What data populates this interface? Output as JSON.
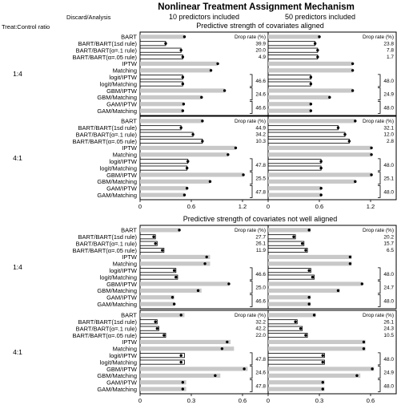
{
  "chart_data": {
    "type": "bar",
    "title": "Nonlinear Treatment Assignment Mechanism",
    "row_header": "Treat:Control ratio",
    "method_header": "Discard/Analysis",
    "column_headers": [
      "10 predictors included",
      "50 predictors included"
    ],
    "drop_rate_label": "Drop rate (%)",
    "methods": [
      "BART",
      "BART/BART(1sd rule)",
      "BART/BART(α=.1 rule)",
      "BART/BART(α=.05 rule)",
      "IPTW",
      "Matching",
      "logit/IPTW",
      "logit/Matching",
      "GBM/IPTW",
      "GBM/Matching",
      "GAM/IPTW",
      "GAM/Matching"
    ],
    "bar_fill": [
      "gray",
      "white",
      "white",
      "white",
      "gray",
      "gray",
      "white",
      "white",
      "gray",
      "gray",
      "gray",
      "gray"
    ],
    "colors": {
      "gray_bar": "#c8c8c8",
      "white_bar": "#ffffff",
      "outline": "#000000"
    },
    "sections": [
      {
        "subtitle": "Predictive strength of covariates aligned",
        "xlim": [
          0,
          1.5
        ],
        "xticks": [
          "0",
          "0.6",
          "1.2"
        ],
        "xtick_values": [
          0,
          0.6,
          1.2
        ],
        "panels": [
          {
            "ratio": "1:4",
            "column": 0,
            "bias": [
              0.52,
              0.3,
              0.48,
              0.5,
              0.91,
              0.83,
              0.5,
              0.5,
              0.99,
              0.72,
              0.51,
              0.5
            ],
            "point": [
              0.52,
              0.3,
              0.48,
              0.5,
              0.91,
              0.83,
              0.5,
              0.5,
              0.99,
              0.72,
              0.51,
              0.5
            ],
            "drop_rates": {
              "BART/BART(1sd rule)": "39.9",
              "BART/BART(α=.1 rule)": "20.0",
              "BART/BART(α=.05 rule)": "4.9",
              "logit": "46.6",
              "GBM": "24.6",
              "GAM": "46.6"
            }
          },
          {
            "ratio": "1:4",
            "column": 1,
            "bias": [
              0.6,
              0.55,
              0.58,
              0.58,
              0.99,
              0.99,
              0.5,
              0.5,
              0.99,
              0.72,
              0.5,
              0.5
            ],
            "point": [
              0.6,
              0.55,
              0.58,
              0.58,
              0.99,
              0.99,
              0.5,
              0.5,
              0.99,
              0.72,
              0.5,
              0.5
            ],
            "drop_rates": {
              "BART/BART(1sd rule)": "23.8",
              "BART/BART(α=.1 rule)": "7.8",
              "BART/BART(α=.05 rule)": "1.7",
              "logit": "48.0",
              "GBM": "24.9",
              "GAM": "48.0"
            }
          },
          {
            "ratio": "4:1",
            "column": 0,
            "bias": [
              0.73,
              0.48,
              0.62,
              0.73,
              1.12,
              1.03,
              0.56,
              0.55,
              1.21,
              0.82,
              0.55,
              0.52
            ],
            "point": [
              0.73,
              0.48,
              0.62,
              0.73,
              1.12,
              1.03,
              0.56,
              0.55,
              1.21,
              0.82,
              0.55,
              0.52
            ],
            "drop_rates": {
              "BART/BART(1sd rule)": "44.9",
              "BART/BART(α=.1 rule)": "34.2",
              "BART/BART(α=.05 rule)": "10.3",
              "logit": "47.8",
              "GBM": "25.5",
              "GAM": "47.8"
            }
          },
          {
            "ratio": "4:1",
            "column": 1,
            "bias": [
              1.02,
              0.82,
              0.9,
              0.95,
              1.21,
              1.21,
              0.62,
              0.62,
              1.21,
              1.02,
              0.62,
              0.62
            ],
            "point": [
              1.02,
              0.82,
              0.9,
              0.95,
              1.21,
              1.21,
              0.62,
              0.62,
              1.21,
              1.02,
              0.62,
              0.62
            ],
            "drop_rates": {
              "BART/BART(1sd rule)": "32.1",
              "BART/BART(α=.1 rule)": "12.0",
              "BART/BART(α=.05 rule)": "2.8",
              "logit": "48.0",
              "GBM": "25.1",
              "GAM": "48.0"
            }
          }
        ]
      },
      {
        "subtitle": "Predictive strength of covariates not well aligned",
        "xlim": [
          0,
          0.75
        ],
        "xticks": [
          "0",
          "0.3",
          "0.6"
        ],
        "xtick_values": [
          0,
          0.3,
          0.6
        ],
        "panels": [
          {
            "ratio": "1:4",
            "column": 0,
            "bias": [
              0.23,
              0.09,
              0.1,
              0.14,
              0.41,
              0.41,
              0.21,
              0.22,
              0.52,
              0.36,
              0.2,
              0.2
            ],
            "point": [
              0.23,
              0.08,
              0.09,
              0.13,
              0.39,
              0.38,
              0.2,
              0.21,
              0.52,
              0.34,
              0.19,
              0.2
            ],
            "drop_rates": {
              "BART/BART(1sd rule)": "27.7",
              "BART/BART(α=.1 rule)": "26.1",
              "BART/BART(α=.05 rule)": "11.9",
              "logit": "46.6",
              "GBM": "25.0",
              "GAM": "46.6"
            }
          },
          {
            "ratio": "1:4",
            "column": 1,
            "bias": [
              0.25,
              0.16,
              0.21,
              0.23,
              0.49,
              0.49,
              0.25,
              0.27,
              0.55,
              0.42,
              0.25,
              0.25
            ],
            "point": [
              0.24,
              0.15,
              0.2,
              0.22,
              0.48,
              0.48,
              0.24,
              0.26,
              0.55,
              0.41,
              0.24,
              0.24
            ],
            "drop_rates": {
              "BART/BART(1sd rule)": "20.2",
              "BART/BART(α=.1 rule)": "15.7",
              "BART/BART(α=.05 rule)": "6.5",
              "logit": "48.0",
              "GBM": "24.7",
              "GAM": "48.0"
            }
          },
          {
            "ratio": "4:1",
            "column": 0,
            "bias": [
              0.26,
              0.1,
              0.11,
              0.15,
              0.53,
              0.55,
              0.26,
              0.26,
              0.63,
              0.47,
              0.27,
              0.27
            ],
            "point": [
              0.24,
              0.09,
              0.1,
              0.14,
              0.51,
              0.48,
              0.24,
              0.24,
              0.61,
              0.44,
              0.25,
              0.25
            ],
            "drop_rates": {
              "BART/BART(1sd rule)": "32.2",
              "BART/BART(α=.1 rule)": "42.2",
              "BART/BART(α=.05 rule)": "22.0",
              "logit": "47.8",
              "GBM": "24.6",
              "GAM": "47.8"
            }
          },
          {
            "ratio": "4:1",
            "column": 1,
            "bias": [
              0.28,
              0.17,
              0.2,
              0.23,
              0.57,
              0.57,
              0.33,
              0.33,
              0.62,
              0.54,
              0.33,
              0.33
            ],
            "point": [
              0.27,
              0.16,
              0.19,
              0.22,
              0.56,
              0.56,
              0.32,
              0.32,
              0.61,
              0.52,
              0.32,
              0.32
            ],
            "drop_rates": {
              "BART/BART(1sd rule)": "26.1",
              "BART/BART(α=.1 rule)": "24.3",
              "BART/BART(α=.05 rule)": "10.5",
              "logit": "48.0",
              "GBM": "24.9",
              "GAM": "48.0"
            }
          }
        ]
      }
    ]
  }
}
